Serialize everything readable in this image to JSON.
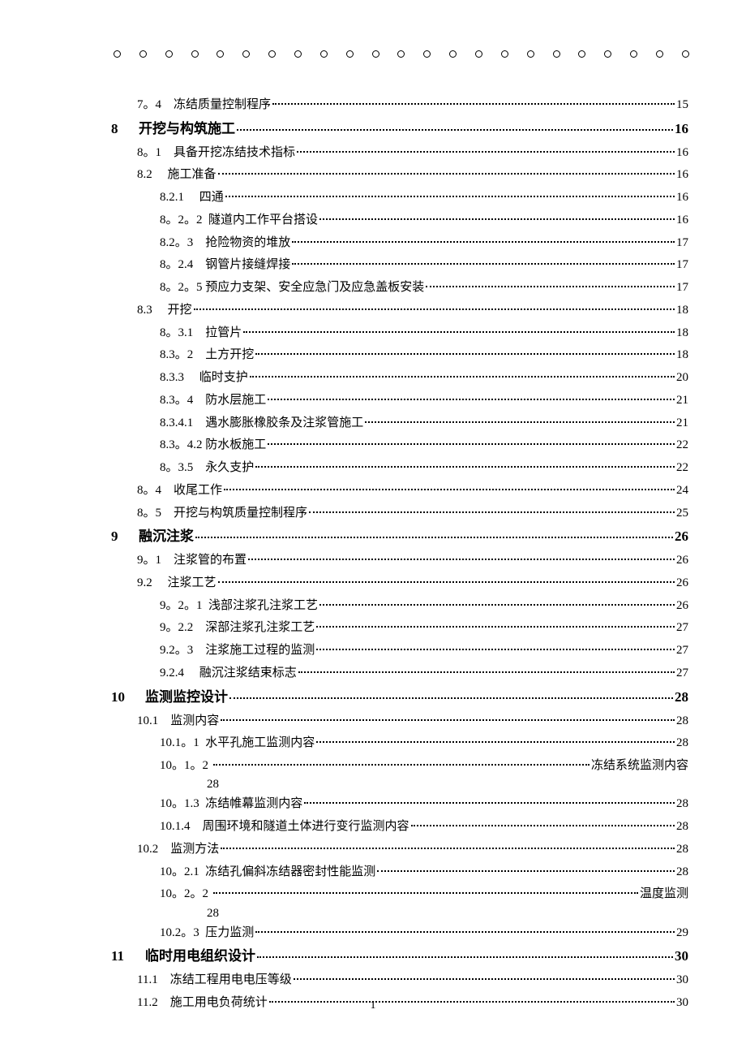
{
  "holes_count": 23,
  "page_number": "1",
  "text_color": "#000000",
  "background_color": "#ffffff",
  "toc": [
    {
      "type": "l2",
      "indent": 1,
      "prefix": "7。4　",
      "title": "冻结质量控制程序",
      "page": "15"
    },
    {
      "type": "l1",
      "num": "8",
      "title": "开挖与构筑施工",
      "page": "16"
    },
    {
      "type": "l2",
      "indent": 1,
      "prefix": "8。1　",
      "title": "具备开挖冻结技术指标",
      "page": "16"
    },
    {
      "type": "l2",
      "indent": 1,
      "prefix": "8.2　 ",
      "title": "施工准备",
      "page": "16"
    },
    {
      "type": "l3",
      "indent": 2,
      "prefix": "8.2.1　 ",
      "title": "四通",
      "page": "16"
    },
    {
      "type": "l3",
      "indent": 2,
      "prefix": "8。2。2  ",
      "title": "隧道内工作平台搭设",
      "page": "16"
    },
    {
      "type": "l3",
      "indent": 2,
      "prefix": "8.2。3　",
      "title": "抢险物资的堆放",
      "page": "17"
    },
    {
      "type": "l3",
      "indent": 2,
      "prefix": "8。2.4　",
      "title": "钢管片接缝焊接",
      "page": "17"
    },
    {
      "type": "l3",
      "indent": 2,
      "prefix": "8。2。5 ",
      "title": "预应力支架、安全应急门及应急盖板安装",
      "page": "17"
    },
    {
      "type": "l2",
      "indent": 1,
      "prefix": "8.3　 ",
      "title": "开挖",
      "page": "18"
    },
    {
      "type": "l3",
      "indent": 2,
      "prefix": "8。3.1　",
      "title": "拉管片",
      "page": "18"
    },
    {
      "type": "l3",
      "indent": 2,
      "prefix": "8.3。2　",
      "title": "土方开挖",
      "page": "18"
    },
    {
      "type": "l3",
      "indent": 2,
      "prefix": "8.3.3　 ",
      "title": "临时支护",
      "page": "20"
    },
    {
      "type": "l3",
      "indent": 2,
      "prefix": "8.3。4　",
      "title": "防水层施工",
      "page": "21"
    },
    {
      "type": "l3",
      "indent": 2,
      "prefix": "8.3.4.1　",
      "title": "遇水膨胀橡胶条及注浆管施工",
      "page": "21"
    },
    {
      "type": "l3",
      "indent": 2,
      "prefix": "8.3。4.2 ",
      "title": "防水板施工",
      "page": "22"
    },
    {
      "type": "l3",
      "indent": 2,
      "prefix": "8。3.5　",
      "title": "永久支护",
      "page": "22"
    },
    {
      "type": "l2",
      "indent": 1,
      "prefix": "8。4　",
      "title": "收尾工作",
      "page": "24"
    },
    {
      "type": "l2",
      "indent": 1,
      "prefix": "8。5　",
      "title": "开挖与构筑质量控制程序",
      "page": "25"
    },
    {
      "type": "l1",
      "num": "9",
      "title": "融沉注浆",
      "page": "26"
    },
    {
      "type": "l2",
      "indent": 1,
      "prefix": "9。1　",
      "title": "注浆管的布置",
      "page": "26"
    },
    {
      "type": "l2",
      "indent": 1,
      "prefix": "9.2　 ",
      "title": "注浆工艺",
      "page": "26"
    },
    {
      "type": "l3",
      "indent": 2,
      "prefix": "9。2。1  ",
      "title": "浅部注浆孔注浆工艺",
      "page": "26"
    },
    {
      "type": "l3",
      "indent": 2,
      "prefix": "9。2.2　",
      "title": "深部注浆孔注浆工艺",
      "page": "27"
    },
    {
      "type": "l3",
      "indent": 2,
      "prefix": "9.2。3　",
      "title": "注浆施工过程的监测",
      "page": "27"
    },
    {
      "type": "l3",
      "indent": 2,
      "prefix": "9.2.4　 ",
      "title": "融沉注浆结束标志",
      "page": "27"
    },
    {
      "type": "l1",
      "num": "10",
      "title": "监测监控设计",
      "page": "28",
      "wide": true
    },
    {
      "type": "l2",
      "indent": 1,
      "prefix": "10.1　",
      "title": "监测内容",
      "page": "28"
    },
    {
      "type": "l3",
      "indent": 2,
      "prefix": "10.1。1  ",
      "title": "水平孔施工监测内容",
      "page": "28"
    },
    {
      "type": "wrap",
      "indent": 2,
      "prefix": "10。1。2 ",
      "trail_text": "冻结系统监测内容",
      "tail": "28"
    },
    {
      "type": "l3",
      "indent": 2,
      "prefix": "10。1.3  ",
      "title": "冻结帷幕监测内容",
      "page": "28"
    },
    {
      "type": "l3",
      "indent": 2,
      "prefix": "10.1.4　",
      "title": "周围环境和隧道土体进行变行监测内容",
      "page": "28"
    },
    {
      "type": "l2",
      "indent": 1,
      "prefix": "10.2　",
      "title": "监测方法",
      "page": "28"
    },
    {
      "type": "l3",
      "indent": 2,
      "prefix": "10。2.1  ",
      "title": "冻结孔偏斜冻结器密封性能监测",
      "page": "28"
    },
    {
      "type": "wrap",
      "indent": 2,
      "prefix": "10。2。2 ",
      "trail_text": "温度监测",
      "tail": "28"
    },
    {
      "type": "l3",
      "indent": 2,
      "prefix": "10.2。3  ",
      "title": "压力监测",
      "page": "29"
    },
    {
      "type": "l1",
      "num": "11",
      "title": "临时用电组织设计",
      "page": "30",
      "wide": true
    },
    {
      "type": "l2",
      "indent": 1,
      "prefix": "11.1　",
      "title": "冻结工程用电电压等级",
      "page": "30"
    },
    {
      "type": "l2",
      "indent": 1,
      "prefix": "11.2　",
      "title": "施工用电负荷统计",
      "page": "30"
    }
  ]
}
